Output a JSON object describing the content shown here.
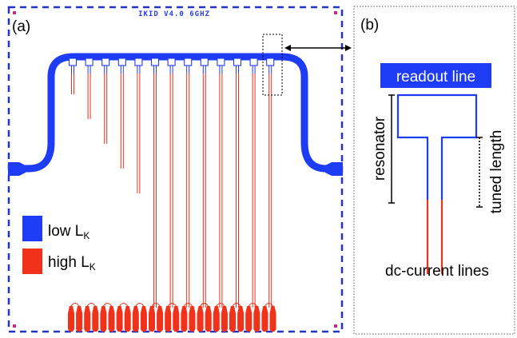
{
  "colors": {
    "low_lk": "#1f3cf5",
    "high_lk": "#f2311b",
    "border": "#2233cc",
    "marker": "#c0307a"
  },
  "panel_a": {
    "label": "(a)",
    "chip_title": "IKID V4.0 6GHZ",
    "legend": [
      {
        "text": "low L",
        "subscript": "K",
        "color_key": "low_lk"
      },
      {
        "text": "high L",
        "subscript": "K",
        "color_key": "high_lk"
      }
    ],
    "resonator_count": 13,
    "bottom_pad_count": 26
  },
  "panel_b": {
    "label": "(b)",
    "badge": "readout line",
    "left_label": "resonator",
    "right_label": "tuned length",
    "bottom_label": "dc-current lines"
  }
}
